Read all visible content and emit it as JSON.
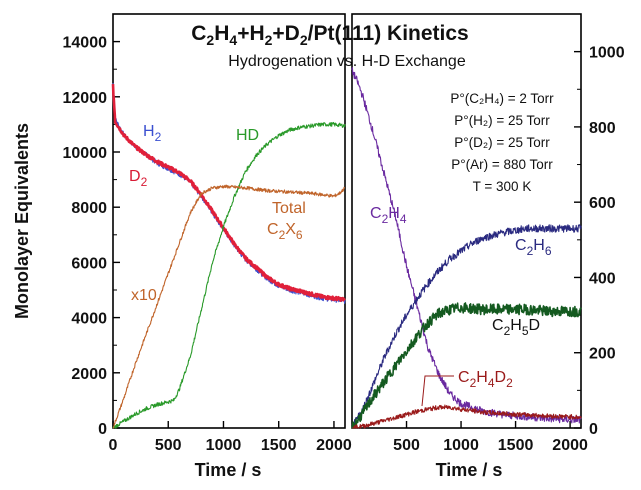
{
  "title_parts": {
    "a": "C",
    "b": "2",
    "c": "H",
    "d": "4",
    "e": "+H",
    "f": "2",
    "g": "+D",
    "h": "2",
    "i": "/Pt(111) Kinetics"
  },
  "subtitle": "Hydrogenation vs. H-D Exchange",
  "conditions": [
    "P°(C₂H₄) = 2 Torr",
    "P°(H₂) = 25 Torr",
    "P°(D₂) = 25 Torr",
    "P°(Ar) = 880 Torr",
    "T = 300 K"
  ],
  "left_panel": {
    "ylabel": "Monolayer Equivalents",
    "xlabel": "Time / s",
    "yticks": [
      "0",
      "2000",
      "4000",
      "6000",
      "8000",
      "10000",
      "12000",
      "14000"
    ],
    "xticks": [
      "0",
      "500",
      "1000",
      "1500",
      "2000"
    ],
    "labels": {
      "h2": {
        "main": "H",
        "sub": "2"
      },
      "d2": {
        "main": "D",
        "sub": "2"
      },
      "hd": {
        "main": "HD"
      },
      "total_1": "Total",
      "total_2": {
        "main": "C",
        "sub1": "2",
        "mid": "X",
        "sub2": "6"
      },
      "x10": "x10"
    }
  },
  "right_panel": {
    "xlabel": "Time / s",
    "yticks": [
      "0",
      "200",
      "400",
      "600",
      "800",
      "1000"
    ],
    "xticks": [
      "500",
      "1000",
      "1500",
      "2000"
    ],
    "labels": {
      "c2h4": {
        "a": "C",
        "b": "2",
        "c": "H",
        "d": "4"
      },
      "c2h6": {
        "a": "C",
        "b": "2",
        "c": "H",
        "d": "6"
      },
      "c2h5d": {
        "a": "C",
        "b": "2",
        "c": "H",
        "d": "5",
        "e": "D"
      },
      "c2h4d2": {
        "a": "C",
        "b": "2",
        "c": "H",
        "d": "4",
        "e": "D",
        "f": "2"
      }
    }
  },
  "colors": {
    "h2": "#3a4fd0",
    "d2": "#e0203a",
    "hd": "#2a9a2a",
    "total": "#c0642a",
    "c2h4": "#6a2aa0",
    "c2h6": "#2a2a80",
    "c2h5d": "#145a20",
    "c2h4d2": "#9a1a1a"
  },
  "chart_data": [
    {
      "type": "line",
      "title": "C2H4+H2+D2/Pt(111) Kinetics",
      "subtitle": "Hydrogenation vs. H-D Exchange",
      "xlabel": "Time / s",
      "ylabel": "Monolayer Equivalents",
      "xlim": [
        0,
        2100
      ],
      "ylim": [
        0,
        15000
      ],
      "series": [
        {
          "name": "H2",
          "x": [
            0,
            20,
            100,
            200,
            300,
            400,
            500,
            600,
            700,
            800,
            900,
            1000,
            1100,
            1200,
            1300,
            1400,
            1500,
            1600,
            1700,
            1800,
            1900,
            2000,
            2100
          ],
          "y": [
            12500,
            11200,
            10600,
            10200,
            9900,
            9600,
            9400,
            9200,
            8900,
            8400,
            7800,
            7200,
            6600,
            6100,
            5750,
            5400,
            5150,
            5000,
            4900,
            4800,
            4700,
            4650,
            4600
          ]
        },
        {
          "name": "D2",
          "x": [
            0,
            20,
            100,
            200,
            300,
            400,
            500,
            600,
            700,
            800,
            900,
            1000,
            1100,
            1200,
            1300,
            1400,
            1500,
            1600,
            1700,
            1800,
            1900,
            2000,
            2100
          ],
          "y": [
            12400,
            11100,
            10600,
            10200,
            9900,
            9650,
            9450,
            9250,
            8950,
            8450,
            7850,
            7250,
            6650,
            6150,
            5800,
            5450,
            5200,
            5050,
            4950,
            4850,
            4750,
            4700,
            4650
          ]
        },
        {
          "name": "HD",
          "x": [
            0,
            100,
            200,
            300,
            400,
            500,
            550,
            600,
            700,
            800,
            900,
            1000,
            1100,
            1200,
            1300,
            1400,
            1500,
            1600,
            1700,
            1800,
            1900,
            2000,
            2100
          ],
          "y": [
            0,
            250,
            500,
            700,
            850,
            950,
            1000,
            1400,
            2600,
            4300,
            6000,
            7300,
            8400,
            9300,
            9900,
            10300,
            10600,
            10800,
            10900,
            10950,
            11000,
            11000,
            10950
          ]
        },
        {
          "name": "Total C2X6 (x10)",
          "x": [
            0,
            100,
            200,
            300,
            400,
            500,
            600,
            700,
            800,
            900,
            1000,
            1200,
            1400,
            1600,
            1800,
            2000,
            2050,
            2100
          ],
          "y": [
            0,
            1100,
            2300,
            3400,
            4500,
            5600,
            6700,
            7800,
            8500,
            8700,
            8750,
            8700,
            8600,
            8550,
            8500,
            8400,
            8500,
            8700
          ]
        }
      ]
    },
    {
      "type": "line",
      "xlabel": "Time / s",
      "xlim": [
        0,
        2100
      ],
      "ylim": [
        0,
        1100
      ],
      "series": [
        {
          "name": "C2H4",
          "x": [
            0,
            50,
            100,
            200,
            300,
            400,
            500,
            600,
            700,
            800,
            900,
            1000,
            1200,
            1400,
            1600,
            1800,
            2000,
            2100
          ],
          "y": [
            950,
            920,
            880,
            780,
            670,
            560,
            430,
            320,
            210,
            140,
            90,
            65,
            45,
            35,
            30,
            25,
            22,
            22
          ]
        },
        {
          "name": "C2H6",
          "x": [
            0,
            100,
            200,
            300,
            400,
            500,
            600,
            700,
            800,
            900,
            1000,
            1100,
            1200,
            1400,
            1600,
            1800,
            2000,
            2100
          ],
          "y": [
            0,
            50,
            120,
            190,
            250,
            300,
            345,
            385,
            420,
            450,
            470,
            490,
            505,
            520,
            530,
            530,
            530,
            530
          ]
        },
        {
          "name": "C2H5D",
          "x": [
            0,
            100,
            200,
            300,
            400,
            500,
            600,
            700,
            800,
            900,
            1000,
            1200,
            1400,
            1600,
            1800,
            2000,
            2100
          ],
          "y": [
            0,
            40,
            85,
            125,
            165,
            205,
            245,
            280,
            305,
            315,
            320,
            315,
            315,
            315,
            310,
            310,
            310
          ]
        },
        {
          "name": "C2H4D2",
          "x": [
            0,
            100,
            200,
            300,
            400,
            500,
            600,
            700,
            800,
            900,
            1000,
            1200,
            1400,
            1600,
            1800,
            2000,
            2100
          ],
          "y": [
            0,
            5,
            12,
            20,
            28,
            36,
            44,
            50,
            55,
            55,
            50,
            42,
            38,
            35,
            32,
            30,
            28
          ]
        }
      ]
    }
  ]
}
